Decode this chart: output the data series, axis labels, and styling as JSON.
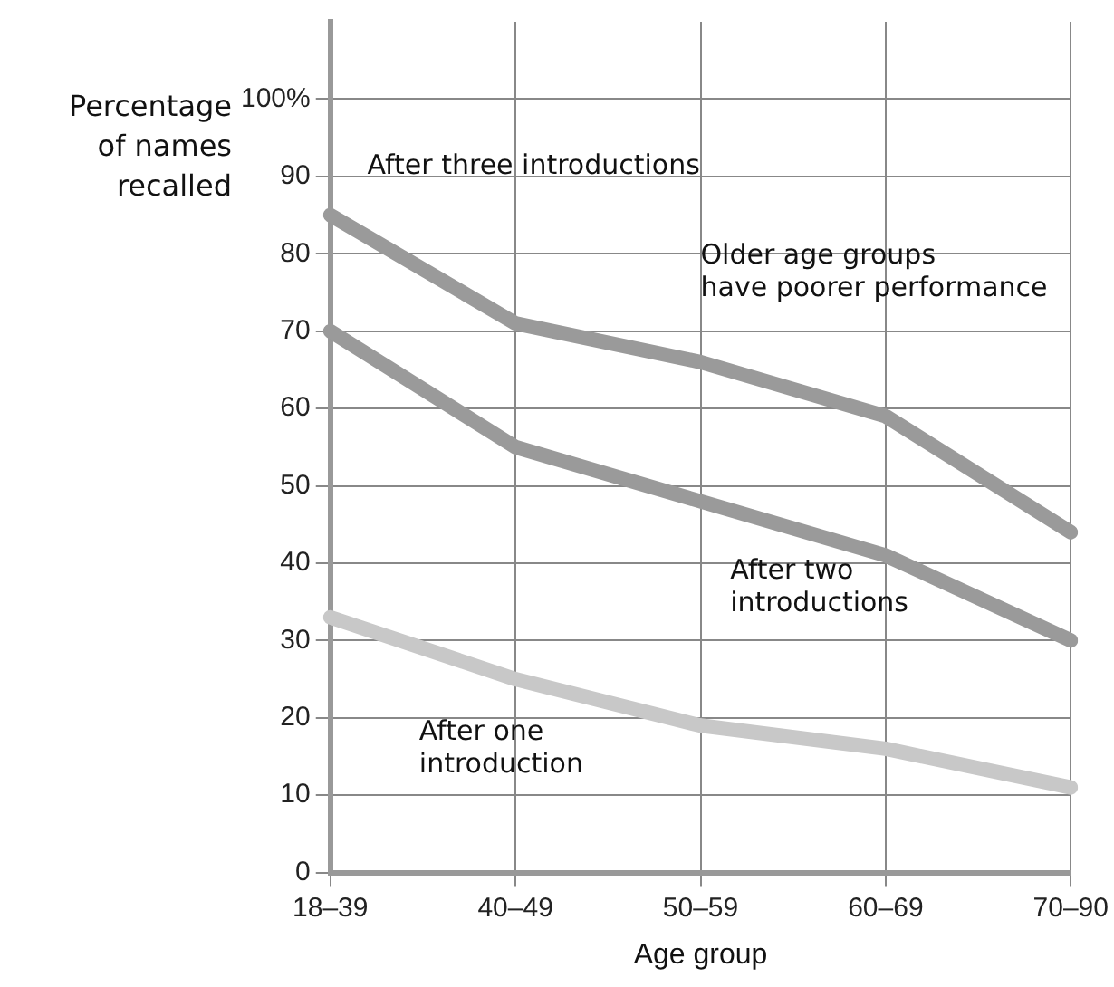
{
  "chart_data": {
    "type": "line",
    "xlabel": "Age group",
    "ylabel": "Percentage of names recalled",
    "categories": [
      "18–39",
      "40–49",
      "50–59",
      "60–69",
      "70–90"
    ],
    "series": [
      {
        "name": "After three introductions",
        "color": "#9a9a9a",
        "values": [
          85,
          71,
          66,
          59,
          44
        ]
      },
      {
        "name": "After two introductions",
        "color": "#9a9a9a",
        "values": [
          70,
          55,
          48,
          41,
          30
        ]
      },
      {
        "name": "After one introduction",
        "color": "#c8c8c8",
        "values": [
          33,
          25,
          19,
          16,
          11
        ]
      }
    ],
    "annotations": [
      "Older age groups\nhave poorer performance"
    ],
    "ylim": [
      0,
      110
    ],
    "yticks": [
      0,
      10,
      20,
      30,
      40,
      50,
      60,
      70,
      80,
      90,
      {
        "value": 100,
        "label": "100%"
      }
    ],
    "grid": true,
    "legend": false,
    "marker": "none",
    "line_style": "solid"
  }
}
